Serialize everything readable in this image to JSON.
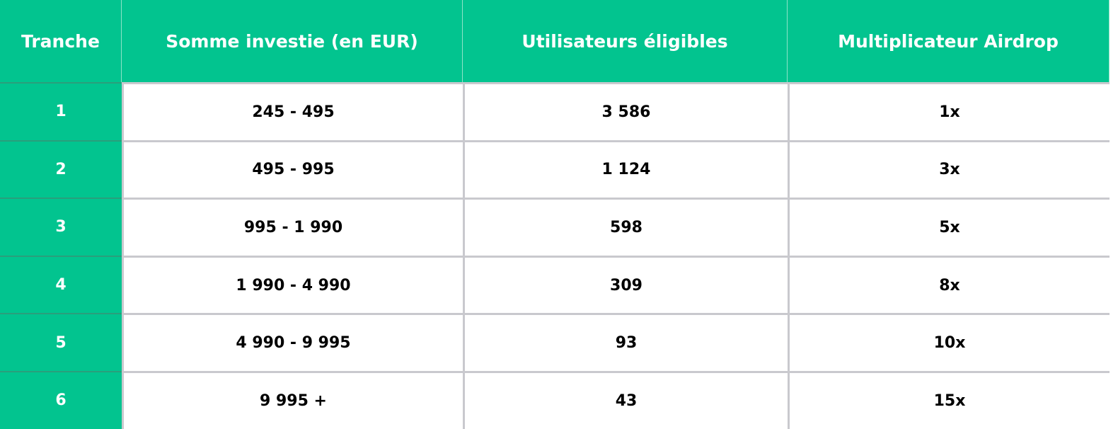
{
  "table": {
    "header": [
      "Tranche",
      "Somme investie (en EUR)",
      "Utilisateurs éligibles",
      "Multiplicateur Airdrop"
    ],
    "rows": [
      [
        "1",
        "245 - 495",
        "3 586",
        "1x"
      ],
      [
        "2",
        "495 - 995",
        "1 124",
        "3x"
      ],
      [
        "3",
        "995 - 1 990",
        "598",
        "5x"
      ],
      [
        "4",
        "1 990 - 4 990",
        "309",
        "8x"
      ],
      [
        "5",
        "4 990 - 9 995",
        "93",
        "10x"
      ],
      [
        "6",
        "9 995 +",
        "43",
        "15x"
      ]
    ]
  }
}
